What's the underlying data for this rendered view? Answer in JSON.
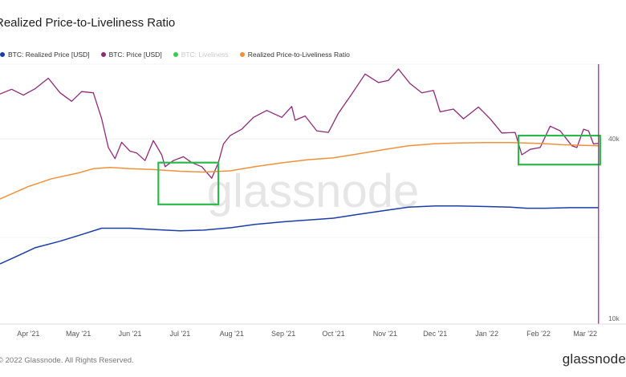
{
  "header": {
    "title": "Realized Price-to-Liveliness Ratio"
  },
  "legend": [
    {
      "label": "BTC: Realized Price [USD]",
      "color": "#1a3ea8",
      "muted": false
    },
    {
      "label": "BTC: Price [USD]",
      "color": "#8e2a78",
      "muted": false
    },
    {
      "label": "BTC: Liveliness",
      "color": "#3cc85a",
      "muted": true
    },
    {
      "label": "Realized Price-to-Liveliness Ratio",
      "color": "#f0913a",
      "muted": false
    }
  ],
  "footer": {
    "copyright": "2022 Glassnode. All Rights Reserved.",
    "brand": "glassnode"
  },
  "watermark": "glassnode",
  "chart_data": {
    "type": "line",
    "x_tick_labels": [
      "Apr '21",
      "May '21",
      "Jun '21",
      "Jul '21",
      "Aug '21",
      "Sep '21",
      "Oct '21",
      "Nov '21",
      "Dec '21",
      "Jan '22",
      "Feb '22",
      "Mar '22"
    ],
    "y_axis": {
      "scale": "log",
      "ylim": [
        10000,
        70000
      ],
      "ticks": [
        {
          "value": 40000,
          "label": "40k"
        },
        {
          "value": 10000,
          "label": "10k"
        }
      ]
    },
    "x_range": [
      "2021-03-15",
      "2022-03-12"
    ],
    "cursor_date": "2022-03-09",
    "highlights": [
      {
        "x0": "2021-06-18",
        "x1": "2021-07-24",
        "y0": 24500,
        "y1": 33500,
        "color": "#2db84b"
      },
      {
        "x0": "2022-01-20",
        "x1": "2022-03-10",
        "y0": 33000,
        "y1": 41000,
        "color": "#2db84b"
      }
    ],
    "series": [
      {
        "name": "BTC: Price [USD]",
        "color": "#8e2a78",
        "points": [
          [
            "2021-03-15",
            56000
          ],
          [
            "2021-03-22",
            58000
          ],
          [
            "2021-03-29",
            55500
          ],
          [
            "2021-04-05",
            58200
          ],
          [
            "2021-04-13",
            63000
          ],
          [
            "2021-04-20",
            56500
          ],
          [
            "2021-04-27",
            53000
          ],
          [
            "2021-05-03",
            57000
          ],
          [
            "2021-05-10",
            56500
          ],
          [
            "2021-05-15",
            46500
          ],
          [
            "2021-05-19",
            37500
          ],
          [
            "2021-05-23",
            34500
          ],
          [
            "2021-05-27",
            39000
          ],
          [
            "2021-06-01",
            36500
          ],
          [
            "2021-06-05",
            36000
          ],
          [
            "2021-06-10",
            34000
          ],
          [
            "2021-06-15",
            39500
          ],
          [
            "2021-06-20",
            35500
          ],
          [
            "2021-06-22",
            32500
          ],
          [
            "2021-06-27",
            34000
          ],
          [
            "2021-07-03",
            35000
          ],
          [
            "2021-07-08",
            33500
          ],
          [
            "2021-07-14",
            32500
          ],
          [
            "2021-07-20",
            29800
          ],
          [
            "2021-07-24",
            33500
          ],
          [
            "2021-07-27",
            38500
          ],
          [
            "2021-07-31",
            41000
          ],
          [
            "2021-08-07",
            43000
          ],
          [
            "2021-08-14",
            47000
          ],
          [
            "2021-08-22",
            49500
          ],
          [
            "2021-08-31",
            47000
          ],
          [
            "2021-09-06",
            51000
          ],
          [
            "2021-09-08",
            46000
          ],
          [
            "2021-09-14",
            47500
          ],
          [
            "2021-09-21",
            42500
          ],
          [
            "2021-09-28",
            42000
          ],
          [
            "2021-10-04",
            48500
          ],
          [
            "2021-10-12",
            56000
          ],
          [
            "2021-10-20",
            65000
          ],
          [
            "2021-10-28",
            61000
          ],
          [
            "2021-11-03",
            62000
          ],
          [
            "2021-11-09",
            67500
          ],
          [
            "2021-11-16",
            60500
          ],
          [
            "2021-11-23",
            56500
          ],
          [
            "2021-11-30",
            57500
          ],
          [
            "2021-12-04",
            49000
          ],
          [
            "2021-12-12",
            50000
          ],
          [
            "2021-12-18",
            46500
          ],
          [
            "2021-12-27",
            50800
          ],
          [
            "2022-01-03",
            46500
          ],
          [
            "2022-01-10",
            41800
          ],
          [
            "2022-01-18",
            42000
          ],
          [
            "2022-01-22",
            35500
          ],
          [
            "2022-01-27",
            37000
          ],
          [
            "2022-02-02",
            37500
          ],
          [
            "2022-02-08",
            44000
          ],
          [
            "2022-02-14",
            42500
          ],
          [
            "2022-02-21",
            38000
          ],
          [
            "2022-02-24",
            37500
          ],
          [
            "2022-02-28",
            43000
          ],
          [
            "2022-03-03",
            42500
          ],
          [
            "2022-03-06",
            38500
          ],
          [
            "2022-03-09",
            38700
          ]
        ]
      },
      {
        "name": "Realized Price-to-Liveliness Ratio",
        "color": "#f0913a",
        "points": [
          [
            "2021-03-15",
            25500
          ],
          [
            "2021-04-01",
            28000
          ],
          [
            "2021-04-15",
            29700
          ],
          [
            "2021-05-01",
            31000
          ],
          [
            "2021-05-10",
            32000
          ],
          [
            "2021-05-20",
            32300
          ],
          [
            "2021-06-01",
            32000
          ],
          [
            "2021-06-15",
            31800
          ],
          [
            "2021-07-01",
            31400
          ],
          [
            "2021-07-15",
            31200
          ],
          [
            "2021-07-31",
            31500
          ],
          [
            "2021-08-15",
            32500
          ],
          [
            "2021-09-01",
            33500
          ],
          [
            "2021-09-15",
            34200
          ],
          [
            "2021-10-01",
            34700
          ],
          [
            "2021-10-15",
            35700
          ],
          [
            "2021-11-01",
            37000
          ],
          [
            "2021-11-15",
            38000
          ],
          [
            "2021-12-01",
            38600
          ],
          [
            "2021-12-15",
            38800
          ],
          [
            "2022-01-01",
            38900
          ],
          [
            "2022-01-15",
            38900
          ],
          [
            "2022-02-01",
            38700
          ],
          [
            "2022-02-15",
            38300
          ],
          [
            "2022-03-01",
            38100
          ],
          [
            "2022-03-09",
            38000
          ]
        ]
      },
      {
        "name": "BTC: Realized Price [USD]",
        "color": "#1a3ea8",
        "points": [
          [
            "2021-03-15",
            15700
          ],
          [
            "2021-03-25",
            16600
          ],
          [
            "2021-04-05",
            17700
          ],
          [
            "2021-04-20",
            18600
          ],
          [
            "2021-05-01",
            19400
          ],
          [
            "2021-05-15",
            20500
          ],
          [
            "2021-06-01",
            20500
          ],
          [
            "2021-06-15",
            20300
          ],
          [
            "2021-07-01",
            20100
          ],
          [
            "2021-07-15",
            20200
          ],
          [
            "2021-08-01",
            20600
          ],
          [
            "2021-08-15",
            21100
          ],
          [
            "2021-09-01",
            21500
          ],
          [
            "2021-10-01",
            22100
          ],
          [
            "2021-10-15",
            22700
          ],
          [
            "2021-11-01",
            23400
          ],
          [
            "2021-11-15",
            24000
          ],
          [
            "2021-12-01",
            24200
          ],
          [
            "2021-12-15",
            24200
          ],
          [
            "2022-01-01",
            24100
          ],
          [
            "2022-01-15",
            24000
          ],
          [
            "2022-01-25",
            23800
          ],
          [
            "2022-02-05",
            23800
          ],
          [
            "2022-02-20",
            23900
          ],
          [
            "2022-03-09",
            23900
          ]
        ]
      }
    ]
  }
}
